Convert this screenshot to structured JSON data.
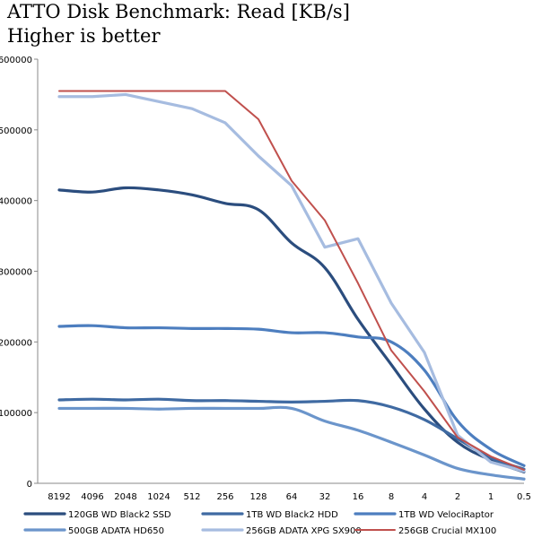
{
  "chart_data": {
    "type": "line",
    "title": "ATTO Disk Benchmark: Read [KB/s]",
    "subtitle": "Higher is better",
    "categories": [
      "8192",
      "4096",
      "2048",
      "1024",
      "512",
      "256",
      "128",
      "64",
      "32",
      "16",
      "8",
      "4",
      "2",
      "1",
      "0.5"
    ],
    "y_ticks": [
      "0",
      "100000",
      "200000",
      "300000",
      "400000",
      "500000",
      "600000"
    ],
    "ylim": [
      0,
      600000
    ],
    "grid": false,
    "legend_position": "bottom",
    "series": [
      {
        "name": "120GB WD Black2 SSD",
        "color": "#2b4d7e",
        "values": [
          415000,
          412000,
          418000,
          415000,
          408000,
          396000,
          387000,
          340000,
          305000,
          232000,
          168000,
          105000,
          58000,
          33000,
          16000
        ]
      },
      {
        "name": "1TB WD Black2 HDD",
        "color": "#3f6aa2",
        "values": [
          118000,
          119000,
          118000,
          119000,
          117000,
          117000,
          116000,
          115000,
          116000,
          117000,
          108000,
          90000,
          63000,
          36000,
          20000
        ]
      },
      {
        "name": "1TB WD VelociRaptor",
        "color": "#4d7ebf",
        "values": [
          222000,
          223000,
          220000,
          220000,
          219000,
          219000,
          218000,
          213000,
          213000,
          207000,
          200000,
          160000,
          88000,
          48000,
          25000
        ]
      },
      {
        "name": "500GB ADATA HD650",
        "color": "#6b95cb",
        "values": [
          106000,
          106000,
          106000,
          105000,
          106000,
          106000,
          106000,
          106000,
          88000,
          75000,
          58000,
          40000,
          21000,
          12000,
          6000
        ]
      },
      {
        "name": "256GB ADATA XPG SX900",
        "color": "#a6bce0",
        "values": [
          547000,
          547000,
          550000,
          540000,
          530000,
          510000,
          463000,
          421000,
          334000,
          346000,
          255000,
          185000,
          68000,
          30000,
          17000
        ]
      },
      {
        "name": "256GB Crucial MX100",
        "color": "#c0504d",
        "values": [
          555000,
          555000,
          555000,
          555000,
          555000,
          555000,
          515000,
          428000,
          372000,
          283000,
          188000,
          130000,
          65000,
          38000,
          19000
        ]
      }
    ]
  }
}
